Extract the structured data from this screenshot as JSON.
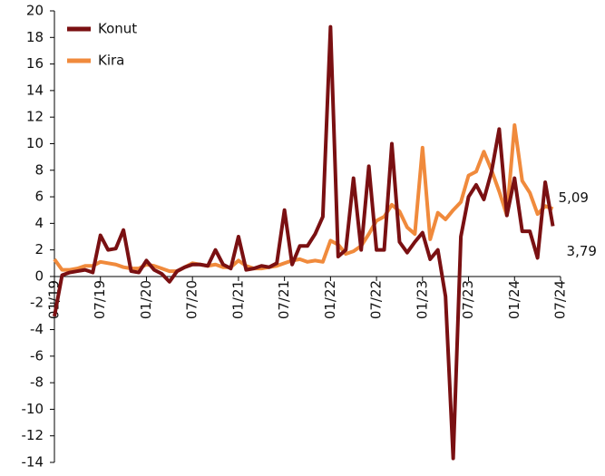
{
  "chart_data": {
    "type": "line",
    "categories": [
      "01/19",
      null,
      null,
      null,
      null,
      null,
      "07/19",
      null,
      null,
      null,
      null,
      null,
      "01/20",
      null,
      null,
      null,
      null,
      null,
      "07/20",
      null,
      null,
      null,
      null,
      null,
      "01/21",
      null,
      null,
      null,
      null,
      null,
      "07/21",
      null,
      null,
      null,
      null,
      null,
      "01/22",
      null,
      null,
      null,
      null,
      null,
      "07/22",
      null,
      null,
      null,
      null,
      null,
      "01/23",
      null,
      null,
      null,
      null,
      null,
      "07/23",
      null,
      null,
      null,
      null,
      null,
      "01/24",
      null,
      null,
      null,
      null,
      null,
      "07/24"
    ],
    "series": [
      {
        "name": "Konut",
        "color": "#7a1012",
        "values": [
          -3,
          0.1,
          0.3,
          0.4,
          0.5,
          0.3,
          3.1,
          2.0,
          2.1,
          3.5,
          0.4,
          0.3,
          1.2,
          0.5,
          0.2,
          -0.4,
          0.4,
          0.7,
          0.9,
          0.9,
          0.8,
          2.0,
          0.9,
          0.6,
          3.0,
          0.5,
          0.6,
          0.8,
          0.7,
          1.0,
          5.0,
          0.9,
          2.3,
          2.3,
          3.2,
          4.5,
          18.8,
          1.5,
          2.0,
          7.4,
          2.0,
          8.3,
          2.0,
          2.0,
          10.0,
          2.6,
          1.8,
          2.6,
          3.3,
          1.3,
          2.0,
          -1.5,
          -13.7,
          3.0,
          6.0,
          6.9,
          5.8,
          7.9,
          11.1,
          4.6,
          7.4,
          3.4,
          3.4,
          1.4,
          7.1,
          3.79,
          null
        ],
        "value_labels": [
          null,
          null,
          null,
          null,
          null,
          null,
          null,
          null,
          null,
          null,
          null,
          null,
          null,
          null,
          null,
          null,
          null,
          null,
          null,
          null,
          null,
          null,
          null,
          null,
          null,
          null,
          null,
          null,
          null,
          null,
          null,
          null,
          null,
          null,
          null,
          null,
          null,
          null,
          null,
          null,
          null,
          null,
          null,
          null,
          null,
          null,
          null,
          null,
          null,
          null,
          null,
          null,
          null,
          null,
          null,
          null,
          null,
          null,
          null,
          null,
          null,
          null,
          null,
          null,
          null,
          "3,79",
          null
        ]
      },
      {
        "name": "Kira",
        "color": "#f08a3c",
        "values": [
          1.3,
          0.5,
          0.5,
          0.6,
          0.8,
          0.8,
          1.1,
          1.0,
          0.9,
          0.7,
          0.6,
          0.6,
          0.9,
          0.8,
          0.6,
          0.4,
          0.4,
          0.7,
          1.0,
          0.9,
          0.8,
          0.9,
          0.7,
          0.7,
          1.2,
          0.8,
          0.6,
          0.6,
          0.7,
          0.8,
          1.0,
          1.2,
          1.3,
          1.1,
          1.2,
          1.1,
          2.7,
          2.4,
          1.7,
          1.9,
          2.3,
          3.2,
          4.2,
          4.5,
          5.4,
          4.9,
          3.7,
          3.2,
          9.7,
          2.8,
          4.8,
          4.3,
          5.0,
          5.6,
          7.6,
          7.9,
          9.4,
          8.0,
          6.4,
          4.6,
          11.4,
          7.2,
          6.3,
          4.7,
          5.3,
          5.09,
          null
        ],
        "value_labels": [
          null,
          null,
          null,
          null,
          null,
          null,
          null,
          null,
          null,
          null,
          null,
          null,
          null,
          null,
          null,
          null,
          null,
          null,
          null,
          null,
          null,
          null,
          null,
          null,
          null,
          null,
          null,
          null,
          null,
          null,
          null,
          null,
          null,
          null,
          null,
          null,
          null,
          null,
          null,
          null,
          null,
          null,
          null,
          null,
          null,
          null,
          null,
          null,
          null,
          null,
          null,
          null,
          null,
          null,
          null,
          null,
          null,
          null,
          null,
          null,
          null,
          null,
          null,
          null,
          null,
          "5,09",
          null
        ]
      }
    ],
    "ylim": [
      -14,
      20
    ],
    "yticks": [
      -14,
      -12,
      -10,
      -8,
      -6,
      -4,
      -2,
      0,
      2,
      4,
      6,
      8,
      10,
      12,
      14,
      16,
      18,
      20
    ],
    "legend": "top-left"
  }
}
